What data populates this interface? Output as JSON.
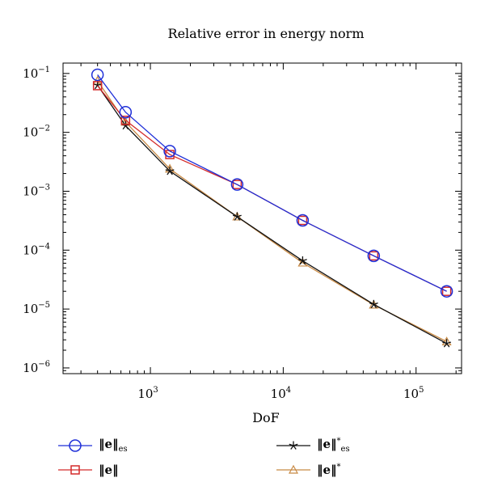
{
  "chart_data": {
    "type": "line",
    "title": "Relative error in energy norm",
    "xlabel": "DoF",
    "ylabel": "",
    "xscale": "log",
    "yscale": "log",
    "xlim": [
      220,
      220000
    ],
    "ylim": [
      8e-07,
      0.15
    ],
    "grid": false,
    "legend_position": "below",
    "x_ticks": [
      {
        "value": 1000,
        "base": "10",
        "exp": "3"
      },
      {
        "value": 10000,
        "base": "10",
        "exp": "4"
      },
      {
        "value": 100000,
        "base": "10",
        "exp": "5"
      }
    ],
    "y_ticks": [
      {
        "value": 0.1,
        "base": "10",
        "exp": "−1"
      },
      {
        "value": 0.01,
        "base": "10",
        "exp": "−2"
      },
      {
        "value": 0.001,
        "base": "10",
        "exp": "−3"
      },
      {
        "value": 0.0001,
        "base": "10",
        "exp": "−4"
      },
      {
        "value": 1e-05,
        "base": "10",
        "exp": "−5"
      },
      {
        "value": 1e-06,
        "base": "10",
        "exp": "−6"
      }
    ],
    "series": [
      {
        "key": "e-es",
        "marker": "circle",
        "color": "#1f2fd8",
        "x": [
          400,
          650,
          1400,
          4500,
          14000,
          48000,
          170000
        ],
        "y": [
          0.095,
          0.022,
          0.0048,
          0.0013,
          0.00032,
          8e-05,
          2e-05
        ]
      },
      {
        "key": "e",
        "marker": "square",
        "color": "#d42a2a",
        "x": [
          400,
          650,
          1400,
          4500,
          14000,
          48000,
          170000
        ],
        "y": [
          0.062,
          0.016,
          0.0042,
          0.0013,
          0.00032,
          8e-05,
          2e-05
        ]
      },
      {
        "key": "estar-es",
        "marker": "star",
        "color": "#111111",
        "x": [
          400,
          650,
          1400,
          4500,
          14000,
          48000,
          170000
        ],
        "y": [
          0.063,
          0.013,
          0.0022,
          0.00037,
          6.6e-05,
          1.2e-05,
          2.6e-06
        ]
      },
      {
        "key": "estar",
        "marker": "triangle",
        "color": "#c88a45",
        "x": [
          400,
          650,
          1400,
          4500,
          14000,
          48000,
          170000
        ],
        "y": [
          0.075,
          0.015,
          0.0024,
          0.00037,
          6.1e-05,
          1.18e-05,
          2.8e-06
        ]
      }
    ],
    "legend": [
      {
        "series": "e-es",
        "text": "‖e‖",
        "sub": "es",
        "sup": ""
      },
      {
        "series": "e",
        "text": "‖e‖",
        "sub": "",
        "sup": ""
      },
      {
        "series": "estar-es",
        "text": "‖e‖",
        "sub": "es",
        "sup": "*"
      },
      {
        "series": "estar",
        "text": "‖e‖",
        "sub": "",
        "sup": "*"
      }
    ]
  }
}
